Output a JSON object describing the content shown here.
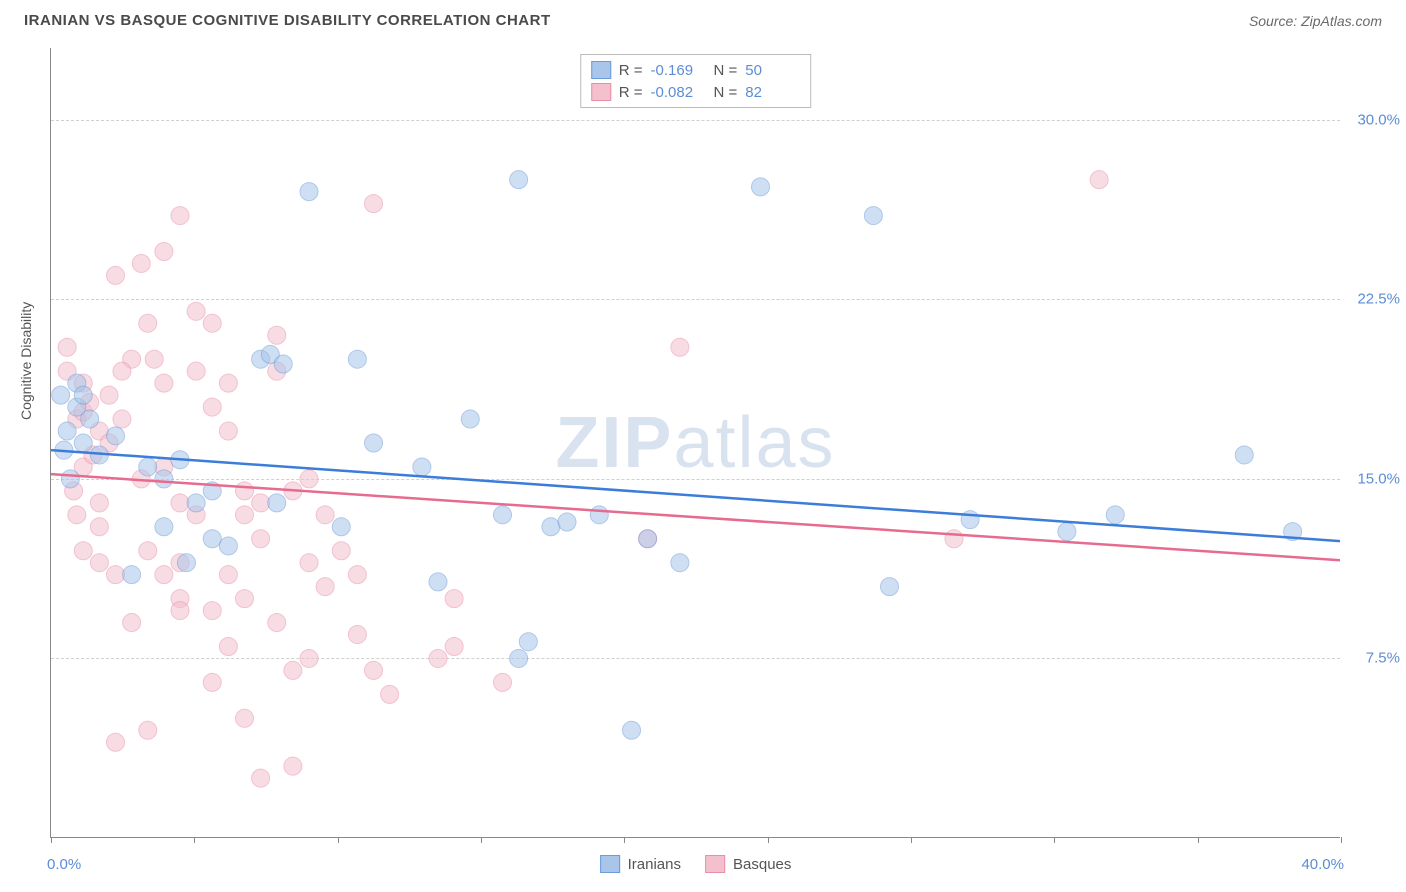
{
  "header": {
    "title": "IRANIAN VS BASQUE COGNITIVE DISABILITY CORRELATION CHART",
    "source": "Source: ZipAtlas.com"
  },
  "chart": {
    "type": "scatter",
    "ylabel": "Cognitive Disability",
    "watermark_part1": "ZIP",
    "watermark_part2": "atlas",
    "xlim": [
      0,
      40
    ],
    "ylim": [
      0,
      33
    ],
    "x_axis_labels": [
      {
        "value": 0,
        "text": "0.0%"
      },
      {
        "value": 40,
        "text": "40.0%"
      }
    ],
    "y_ticks": [
      {
        "value": 7.5,
        "text": "7.5%"
      },
      {
        "value": 15.0,
        "text": "15.0%"
      },
      {
        "value": 22.5,
        "text": "22.5%"
      },
      {
        "value": 30.0,
        "text": "30.0%"
      }
    ],
    "x_tick_positions": [
      0,
      4.44,
      8.89,
      13.33,
      17.78,
      22.22,
      26.67,
      31.11,
      35.56,
      40
    ],
    "background_color": "#ffffff",
    "grid_color": "#d0d0d0",
    "axis_color": "#888888",
    "tick_label_color": "#5b8dd6",
    "marker_radius": 9,
    "marker_opacity": 0.55,
    "line_width": 2.5,
    "series": [
      {
        "name": "Iranians",
        "fill_color": "#a9c5ea",
        "stroke_color": "#6b9bd8",
        "line_color": "#3b7dd8",
        "R": "-0.169",
        "N": "50",
        "trend": {
          "x1": 0,
          "y1": 16.2,
          "x2": 40,
          "y2": 12.4
        },
        "points": [
          [
            0.3,
            18.5
          ],
          [
            0.5,
            17.0
          ],
          [
            0.8,
            19.0
          ],
          [
            0.6,
            15.0
          ],
          [
            1.0,
            16.5
          ],
          [
            1.2,
            17.5
          ],
          [
            1.5,
            16.0
          ],
          [
            0.8,
            18.0
          ],
          [
            6.5,
            20.0
          ],
          [
            6.8,
            20.2
          ],
          [
            7.2,
            19.8
          ],
          [
            3.0,
            15.5
          ],
          [
            3.5,
            15.0
          ],
          [
            4.0,
            15.8
          ],
          [
            4.5,
            14.0
          ],
          [
            5.0,
            14.5
          ],
          [
            5.0,
            12.5
          ],
          [
            5.5,
            12.2
          ],
          [
            2.5,
            11.0
          ],
          [
            8.0,
            27.0
          ],
          [
            9.5,
            20.0
          ],
          [
            10.0,
            16.5
          ],
          [
            11.5,
            15.5
          ],
          [
            12.0,
            10.7
          ],
          [
            13.0,
            17.5
          ],
          [
            14.0,
            13.5
          ],
          [
            14.5,
            7.5
          ],
          [
            14.8,
            8.2
          ],
          [
            15.5,
            13.0
          ],
          [
            16.0,
            13.2
          ],
          [
            14.5,
            27.5
          ],
          [
            17.0,
            13.5
          ],
          [
            18.0,
            4.5
          ],
          [
            18.5,
            12.5
          ],
          [
            19.5,
            11.5
          ],
          [
            22.0,
            27.2
          ],
          [
            25.5,
            26.0
          ],
          [
            26.0,
            10.5
          ],
          [
            28.5,
            13.3
          ],
          [
            31.5,
            12.8
          ],
          [
            33.0,
            13.5
          ],
          [
            37.0,
            16.0
          ],
          [
            38.5,
            12.8
          ],
          [
            3.5,
            13.0
          ],
          [
            4.2,
            11.5
          ],
          [
            0.4,
            16.2
          ],
          [
            1.0,
            18.5
          ],
          [
            7.0,
            14.0
          ],
          [
            9.0,
            13.0
          ],
          [
            2.0,
            16.8
          ]
        ]
      },
      {
        "name": "Basques",
        "fill_color": "#f4c0cd",
        "stroke_color": "#e98fa8",
        "line_color": "#e76b8e",
        "R": "-0.082",
        "N": "82",
        "trend": {
          "x1": 0,
          "y1": 15.2,
          "x2": 40,
          "y2": 11.6
        },
        "points": [
          [
            0.5,
            20.5
          ],
          [
            0.8,
            17.5
          ],
          [
            1.0,
            17.8
          ],
          [
            1.2,
            18.2
          ],
          [
            1.5,
            17.0
          ],
          [
            1.0,
            15.5
          ],
          [
            1.3,
            16.0
          ],
          [
            1.8,
            16.5
          ],
          [
            0.7,
            14.5
          ],
          [
            1.5,
            13.0
          ],
          [
            2.0,
            23.5
          ],
          [
            2.5,
            20.0
          ],
          [
            2.8,
            24.0
          ],
          [
            1.0,
            12.0
          ],
          [
            1.5,
            11.5
          ],
          [
            2.0,
            11.0
          ],
          [
            2.5,
            9.0
          ],
          [
            2.0,
            4.0
          ],
          [
            3.0,
            21.5
          ],
          [
            3.2,
            20.0
          ],
          [
            3.5,
            19.0
          ],
          [
            3.5,
            24.5
          ],
          [
            4.0,
            26.0
          ],
          [
            4.5,
            22.0
          ],
          [
            4.5,
            19.5
          ],
          [
            5.0,
            21.5
          ],
          [
            5.5,
            19.0
          ],
          [
            5.0,
            18.0
          ],
          [
            5.5,
            17.0
          ],
          [
            6.0,
            14.5
          ],
          [
            6.5,
            14.0
          ],
          [
            6.0,
            13.5
          ],
          [
            6.5,
            12.5
          ],
          [
            7.0,
            21.0
          ],
          [
            7.0,
            19.5
          ],
          [
            7.5,
            14.5
          ],
          [
            5.0,
            9.5
          ],
          [
            5.5,
            8.0
          ],
          [
            5.0,
            6.5
          ],
          [
            6.0,
            5.0
          ],
          [
            6.5,
            2.5
          ],
          [
            7.5,
            7.0
          ],
          [
            8.0,
            11.5
          ],
          [
            8.5,
            10.5
          ],
          [
            8.0,
            7.5
          ],
          [
            8.5,
            13.5
          ],
          [
            9.0,
            12.0
          ],
          [
            9.5,
            11.0
          ],
          [
            10.0,
            26.5
          ],
          [
            9.5,
            8.5
          ],
          [
            10.0,
            7.0
          ],
          [
            10.5,
            6.0
          ],
          [
            12.0,
            7.5
          ],
          [
            12.5,
            8.0
          ],
          [
            14.0,
            6.5
          ],
          [
            12.5,
            10.0
          ],
          [
            0.5,
            19.5
          ],
          [
            1.0,
            19.0
          ],
          [
            2.2,
            17.5
          ],
          [
            2.8,
            15.0
          ],
          [
            3.5,
            15.5
          ],
          [
            4.0,
            14.0
          ],
          [
            4.5,
            13.5
          ],
          [
            4.0,
            10.0
          ],
          [
            8.0,
            15.0
          ],
          [
            3.0,
            12.0
          ],
          [
            3.5,
            11.0
          ],
          [
            4.0,
            9.5
          ],
          [
            3.0,
            4.5
          ],
          [
            7.0,
            9.0
          ],
          [
            7.5,
            3.0
          ],
          [
            18.5,
            12.5
          ],
          [
            19.5,
            20.5
          ],
          [
            28.0,
            12.5
          ],
          [
            32.5,
            27.5
          ],
          [
            1.8,
            18.5
          ],
          [
            2.2,
            19.5
          ],
          [
            5.5,
            11.0
          ],
          [
            6.0,
            10.0
          ],
          [
            4.0,
            11.5
          ],
          [
            0.8,
            13.5
          ],
          [
            1.5,
            14.0
          ]
        ]
      }
    ]
  }
}
